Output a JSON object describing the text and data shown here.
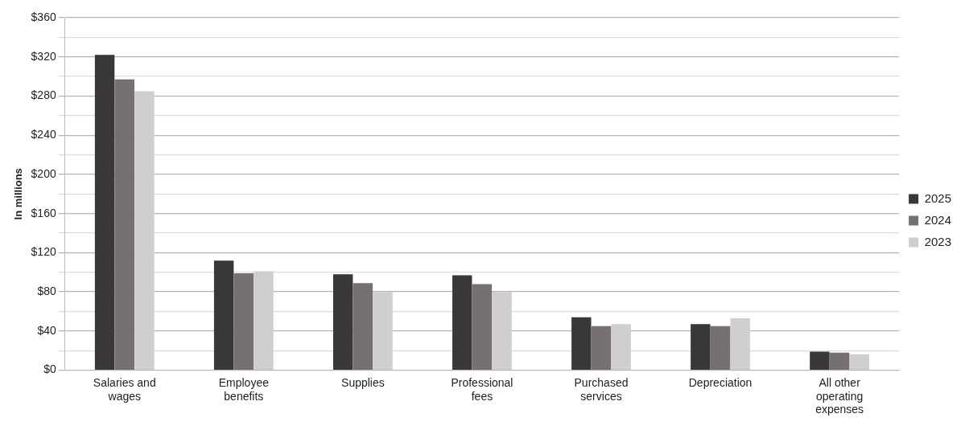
{
  "chart_data": {
    "type": "bar",
    "ylabel": "In millions",
    "categories": [
      "Salaries and wages",
      "Employee benefits",
      "Supplies",
      "Professional fees",
      "Purchased services",
      "Depreciation",
      "All other operating expenses"
    ],
    "series": [
      {
        "name": "2025",
        "color": "#3a3836",
        "values": [
          322,
          112,
          98,
          97,
          54,
          47,
          19
        ]
      },
      {
        "name": "2024",
        "color": "#767170",
        "values": [
          297,
          99,
          89,
          88,
          45,
          45,
          18
        ]
      },
      {
        "name": "2023",
        "color": "#d0cecf",
        "values": [
          285,
          101,
          80,
          80,
          47,
          53,
          16
        ]
      }
    ],
    "ylim": [
      0,
      360
    ],
    "yticks": [
      {
        "value": 0,
        "label": "$0"
      },
      {
        "value": 20,
        "label": null
      },
      {
        "value": 40,
        "label": "$40"
      },
      {
        "value": 60,
        "label": null
      },
      {
        "value": 80,
        "label": "$80"
      },
      {
        "value": 100,
        "label": null
      },
      {
        "value": 120,
        "label": "$120"
      },
      {
        "value": 140,
        "label": null
      },
      {
        "value": 160,
        "label": "$160"
      },
      {
        "value": 180,
        "label": null
      },
      {
        "value": 200,
        "label": "$200"
      },
      {
        "value": 220,
        "label": null
      },
      {
        "value": 240,
        "label": "$240"
      },
      {
        "value": 260,
        "label": null
      },
      {
        "value": 280,
        "label": "$280"
      },
      {
        "value": 300,
        "label": null
      },
      {
        "value": 320,
        "label": "$320"
      },
      {
        "value": 340,
        "label": null
      },
      {
        "value": 360,
        "label": "$360"
      }
    ],
    "grid": "y",
    "legend": "right"
  }
}
